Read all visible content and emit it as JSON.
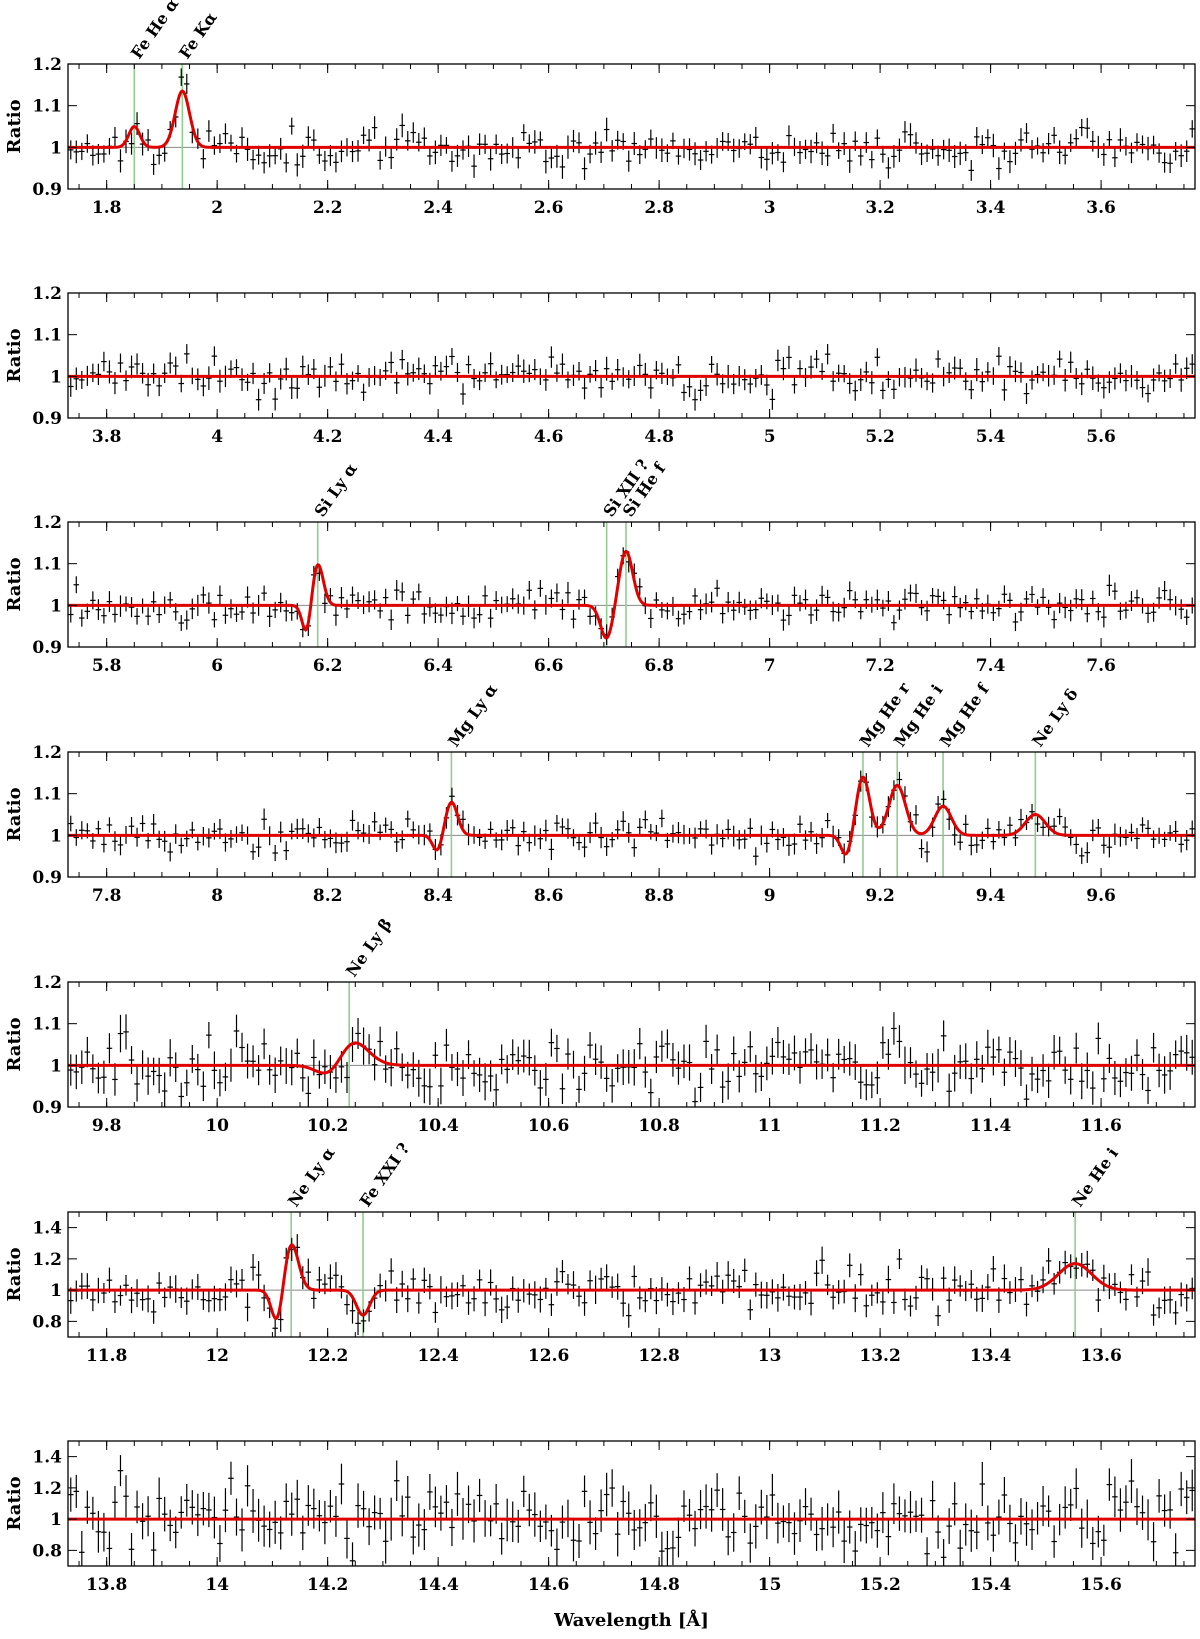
{
  "figure": {
    "x_axis_label": "Wavelength [Å]",
    "y_axis_label": "Ratio"
  },
  "colors": {
    "data": "#000000",
    "model": "#e00000",
    "line_marker": "#8fce8f",
    "unity_line": "#888888"
  },
  "chart_data": [
    {
      "type": "scatter",
      "xlim": [
        1.73,
        3.77
      ],
      "ylim": [
        0.9,
        1.2
      ],
      "xticks": [
        "1.8",
        "2",
        "2.2",
        "2.4",
        "2.6",
        "2.8",
        "3",
        "3.2",
        "3.4",
        "3.6"
      ],
      "yticks": [
        "0.9",
        "1",
        "1.1",
        "1.2"
      ],
      "ylabel": "Ratio",
      "lines": [
        {
          "label": "Fe He α",
          "x": 1.85,
          "amp": 0.05,
          "sigma": 0.01
        },
        {
          "label": "Fe Kα",
          "x": 1.937,
          "amp": 0.135,
          "sigma": 0.013
        }
      ],
      "noise": 0.022,
      "seed": 11
    },
    {
      "type": "scatter",
      "xlim": [
        3.73,
        5.77
      ],
      "ylim": [
        0.9,
        1.2
      ],
      "xticks": [
        "3.8",
        "4",
        "4.2",
        "4.4",
        "4.6",
        "4.8",
        "5",
        "5.2",
        "5.4",
        "5.6"
      ],
      "yticks": [
        "0.9",
        "1",
        "1.1",
        "1.2"
      ],
      "ylabel": "Ratio",
      "lines": [],
      "noise": 0.022,
      "seed": 23
    },
    {
      "type": "scatter",
      "xlim": [
        5.73,
        7.77
      ],
      "ylim": [
        0.9,
        1.2
      ],
      "xticks": [
        "5.8",
        "6",
        "6.2",
        "6.4",
        "6.6",
        "6.8",
        "7",
        "7.2",
        "7.4",
        "7.6"
      ],
      "yticks": [
        "0.9",
        "1",
        "1.1",
        "1.2"
      ],
      "ylabel": "Ratio",
      "lines": [
        {
          "label": "Si Ly α",
          "x": 6.182,
          "amp": 0.1,
          "sigma": 0.01,
          "abs_offset": -0.02,
          "abs_amp": -0.07
        },
        {
          "label": "Si XII ?",
          "x": 6.705,
          "amp": -0.08,
          "sigma": 0.011
        },
        {
          "label": "Si He f",
          "x": 6.74,
          "amp": 0.13,
          "sigma": 0.012
        }
      ],
      "noise": 0.02,
      "seed": 37
    },
    {
      "type": "scatter",
      "xlim": [
        7.73,
        9.77
      ],
      "ylim": [
        0.9,
        1.2
      ],
      "xticks": [
        "7.8",
        "8",
        "8.2",
        "8.4",
        "8.6",
        "8.8",
        "9",
        "9.2",
        "9.4",
        "9.6"
      ],
      "yticks": [
        "0.9",
        "1",
        "1.1",
        "1.2"
      ],
      "ylabel": "Ratio",
      "lines": [
        {
          "label": "Mg Ly α",
          "x": 8.424,
          "amp": 0.08,
          "sigma": 0.011,
          "abs_offset": -0.025,
          "abs_amp": -0.04
        },
        {
          "label": "Mg He r",
          "x": 9.169,
          "amp": 0.14,
          "sigma": 0.012,
          "abs_offset": -0.03,
          "abs_amp": -0.05
        },
        {
          "label": "Mg He i",
          "x": 9.231,
          "amp": 0.12,
          "sigma": 0.015
        },
        {
          "label": "Mg He f",
          "x": 9.314,
          "amp": 0.07,
          "sigma": 0.015
        },
        {
          "label": "Ne Ly δ",
          "x": 9.481,
          "amp": 0.05,
          "sigma": 0.018
        }
      ],
      "noise": 0.02,
      "seed": 53
    },
    {
      "type": "scatter",
      "xlim": [
        9.73,
        11.77
      ],
      "ylim": [
        0.9,
        1.2
      ],
      "xticks": [
        "9.8",
        "10",
        "10.2",
        "10.4",
        "10.6",
        "10.8",
        "11",
        "11.2",
        "11.4",
        "11.6"
      ],
      "yticks": [
        "0.9",
        "1",
        "1.1",
        "1.2"
      ],
      "ylabel": "Ratio",
      "lines": [
        {
          "label": "Ne Ly β",
          "x": 10.239,
          "amp": 0.07,
          "sigma": 0.03,
          "abs_offset": -0.03,
          "abs_amp": -0.05
        }
      ],
      "noise": 0.035,
      "seed": 71
    },
    {
      "type": "scatter",
      "xlim": [
        11.73,
        13.77
      ],
      "ylim": [
        0.7,
        1.5
      ],
      "xticks": [
        "11.8",
        "12",
        "12.2",
        "12.4",
        "12.6",
        "12.8",
        "13",
        "13.2",
        "13.4",
        "13.6"
      ],
      "yticks": [
        "0.8",
        "1",
        "1.2",
        "1.4"
      ],
      "ylabel": "Ratio",
      "lines": [
        {
          "label": "Ne Ly α",
          "x": 12.134,
          "amp": 0.3,
          "sigma": 0.013,
          "abs_offset": -0.025,
          "abs_amp": -0.22
        },
        {
          "label": "Fe XXI ?",
          "x": 12.264,
          "amp": -0.16,
          "sigma": 0.012
        },
        {
          "label": "Ne He i",
          "x": 13.553,
          "amp": 0.17,
          "sigma": 0.03
        }
      ],
      "noise": 0.07,
      "seed": 89
    },
    {
      "type": "scatter",
      "xlim": [
        13.73,
        15.77
      ],
      "ylim": [
        0.7,
        1.5
      ],
      "xticks": [
        "13.8",
        "14",
        "14.2",
        "14.4",
        "14.6",
        "14.8",
        "15",
        "15.2",
        "15.4",
        "15.6"
      ],
      "yticks": [
        "0.8",
        "1",
        "1.2",
        "1.4"
      ],
      "ylabel": "Ratio",
      "xlabel": "Wavelength [Å]",
      "lines": [],
      "noise": 0.11,
      "seed": 97
    }
  ]
}
